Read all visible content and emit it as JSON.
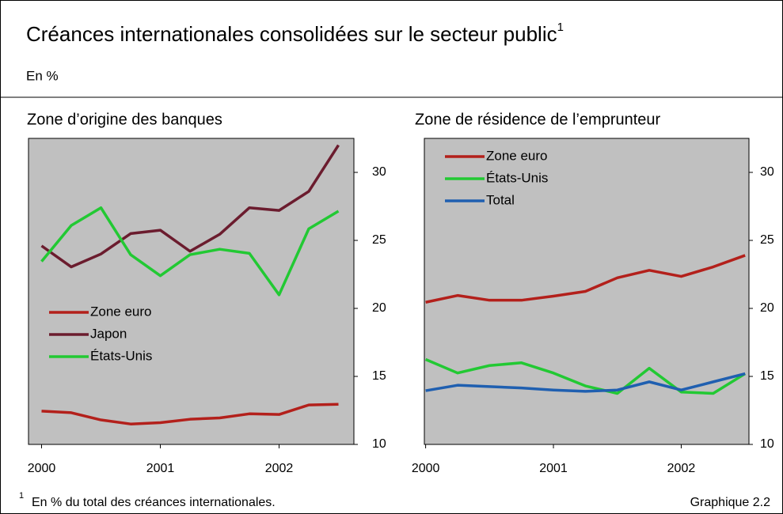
{
  "header": {
    "title": "Créances internationales consolidées sur le secteur public",
    "title_note": "1",
    "subtitle": "En %"
  },
  "footnote": {
    "marker": "1",
    "text": "En % du total des créances internationales."
  },
  "source_label": "Graphique 2.2",
  "chart_data": [
    {
      "type": "line",
      "title": "Zone d’origine des banques",
      "x": [
        2000,
        2000.25,
        2000.5,
        2000.75,
        2001,
        2001.25,
        2001.5,
        2001.75,
        2002,
        2002.25,
        2002.5
      ],
      "xlim": [
        1999.89,
        2002.63
      ],
      "xticks": [
        2000,
        2001,
        2002
      ],
      "ylim": [
        10,
        32.5
      ],
      "yticks": [
        10,
        15,
        20,
        25,
        30
      ],
      "legend": "center left",
      "series": [
        {
          "name": "Zone euro",
          "color": "#b3201b",
          "values": [
            12.45,
            12.33,
            11.8,
            11.5,
            11.6,
            11.85,
            11.95,
            12.25,
            12.2,
            12.9,
            12.95
          ]
        },
        {
          "name": "Japon",
          "color": "#6b1c2e",
          "values": [
            24.6,
            23.05,
            24.0,
            25.5,
            25.75,
            24.2,
            25.45,
            27.4,
            27.2,
            28.6,
            32.0
          ]
        },
        {
          "name": "États-Unis",
          "color": "#22c933",
          "values": [
            23.45,
            26.1,
            27.4,
            23.95,
            22.4,
            23.95,
            24.35,
            24.05,
            21.0,
            25.85,
            27.15
          ]
        }
      ]
    },
    {
      "type": "line",
      "title": "Zone de résidence de l’emprunteur",
      "x": [
        2000,
        2000.25,
        2000.5,
        2000.75,
        2001,
        2001.25,
        2001.5,
        2001.75,
        2002,
        2002.25,
        2002.5
      ],
      "xlim": [
        1999.99,
        2002.53
      ],
      "xticks": [
        2000,
        2001,
        2002
      ],
      "ylim": [
        10,
        32.5
      ],
      "yticks": [
        10,
        15,
        20,
        25,
        30
      ],
      "legend": "upper left",
      "series": [
        {
          "name": "Zone euro",
          "color": "#b3201b",
          "values": [
            20.45,
            20.95,
            20.6,
            20.6,
            20.9,
            21.25,
            22.25,
            22.8,
            22.35,
            23.05,
            23.9
          ]
        },
        {
          "name": "États-Unis",
          "color": "#22c933",
          "values": [
            16.25,
            15.25,
            15.8,
            16.0,
            15.25,
            14.3,
            13.75,
            15.6,
            13.85,
            13.75,
            15.2
          ]
        },
        {
          "name": "Total",
          "color": "#1f5fb0",
          "values": [
            13.95,
            14.35,
            14.25,
            14.15,
            14.0,
            13.9,
            14.0,
            14.6,
            14.0,
            14.6,
            15.2
          ]
        }
      ]
    }
  ]
}
